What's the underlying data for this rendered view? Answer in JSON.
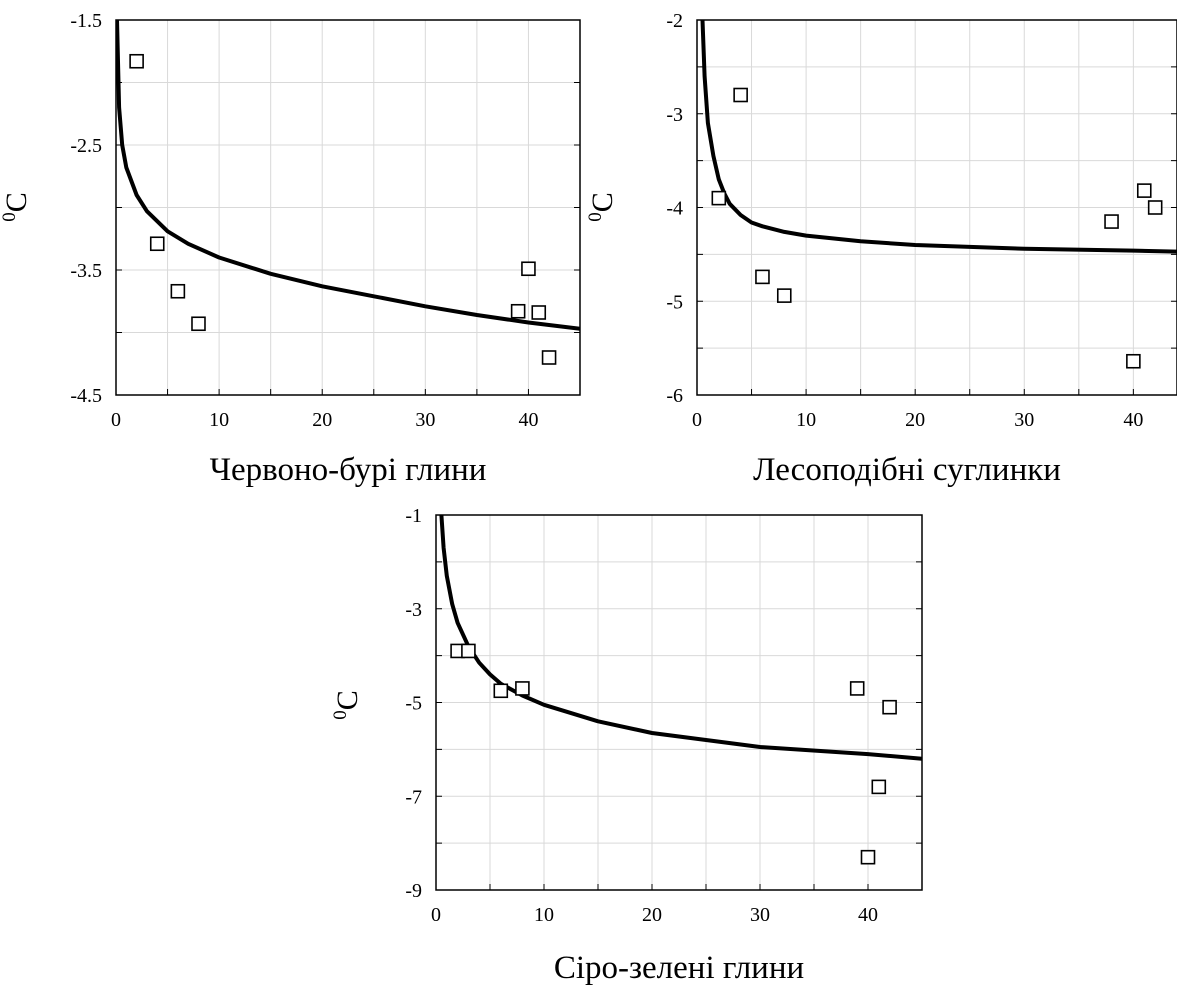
{
  "chart_data": [
    {
      "type": "scatter",
      "xlabel": "Червоно-бурі глини",
      "ylabel": {
        "sup": "0",
        "main": "C"
      },
      "xlim": [
        0,
        45
      ],
      "ylim": [
        -4.5,
        -1.5
      ],
      "xticks": [
        0,
        10,
        20,
        30,
        40
      ],
      "yticks": [
        -4.5,
        -3.5,
        -2.5,
        -1.5
      ],
      "grid": true,
      "series": [
        {
          "kind": "points",
          "x": [
            2,
            4,
            6,
            8,
            39,
            40,
            41,
            42
          ],
          "y": [
            -1.83,
            -3.29,
            -3.67,
            -3.93,
            -3.83,
            -3.49,
            -3.84,
            -4.2
          ]
        },
        {
          "kind": "curve",
          "x": [
            0.1,
            0.3,
            0.6,
            1,
            2,
            3,
            5,
            7,
            10,
            15,
            20,
            25,
            30,
            35,
            40,
            45
          ],
          "y": [
            -1.5,
            -2.2,
            -2.5,
            -2.68,
            -2.9,
            -3.03,
            -3.19,
            -3.29,
            -3.4,
            -3.53,
            -3.63,
            -3.71,
            -3.79,
            -3.86,
            -3.92,
            -3.97
          ]
        }
      ]
    },
    {
      "type": "scatter",
      "xlabel": "Лесоподібні суглинки",
      "ylabel": {
        "sup": "0",
        "main": "C"
      },
      "xlim": [
        0,
        44
      ],
      "ylim": [
        -6,
        -2
      ],
      "xticks": [
        0,
        10,
        20,
        30,
        40
      ],
      "yticks": [
        -6,
        -5,
        -4,
        -3,
        -2
      ],
      "grid": true,
      "series": [
        {
          "kind": "points",
          "x": [
            2,
            4,
            6,
            8,
            38,
            40,
            41,
            42
          ],
          "y": [
            -3.9,
            -2.8,
            -4.74,
            -4.94,
            -4.15,
            -5.64,
            -3.82,
            -4.0
          ]
        },
        {
          "kind": "curve",
          "x": [
            0.5,
            0.7,
            1,
            1.5,
            2,
            2.5,
            3,
            4,
            5,
            6,
            8,
            10,
            15,
            20,
            30,
            40,
            44
          ],
          "y": [
            -2.0,
            -2.6,
            -3.1,
            -3.45,
            -3.7,
            -3.85,
            -3.96,
            -4.08,
            -4.16,
            -4.2,
            -4.26,
            -4.3,
            -4.36,
            -4.4,
            -4.44,
            -4.46,
            -4.47
          ]
        }
      ]
    },
    {
      "type": "scatter",
      "xlabel": "Сіро-зелені глини",
      "ylabel": {
        "sup": "0",
        "main": "C"
      },
      "xlim": [
        0,
        45
      ],
      "ylim": [
        -9,
        -1
      ],
      "xticks": [
        0,
        10,
        20,
        30,
        40
      ],
      "yticks": [
        -9,
        -7,
        -5,
        -3,
        -1
      ],
      "grid": true,
      "series": [
        {
          "kind": "points",
          "x": [
            2,
            3,
            6,
            8,
            39,
            40,
            41,
            42
          ],
          "y": [
            -3.9,
            -3.9,
            -4.75,
            -4.7,
            -4.7,
            -8.3,
            -6.8,
            -5.1
          ]
        },
        {
          "kind": "curve",
          "x": [
            0.5,
            0.7,
            1,
            1.5,
            2,
            3,
            4,
            5,
            6,
            8,
            10,
            15,
            20,
            30,
            40,
            45
          ],
          "y": [
            -1.0,
            -1.7,
            -2.3,
            -2.9,
            -3.3,
            -3.8,
            -4.15,
            -4.4,
            -4.6,
            -4.85,
            -5.05,
            -5.4,
            -5.65,
            -5.95,
            -6.1,
            -6.2
          ]
        }
      ]
    }
  ]
}
